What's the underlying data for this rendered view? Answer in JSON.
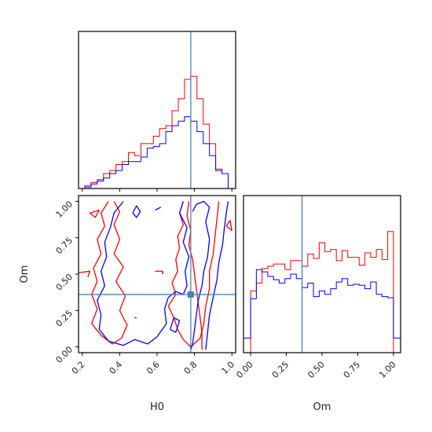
{
  "chart_data": {
    "type": "corner",
    "parameters": [
      "H0",
      "Om"
    ],
    "truths": {
      "H0": 0.78,
      "Om": 0.36
    },
    "truth_color": "#4682b4",
    "series": [
      {
        "color": "#ff0000"
      },
      {
        "color": "#0000ff"
      }
    ],
    "panels": [
      {
        "id": "hist-H0",
        "type": "histogram",
        "x_param": "H0",
        "xlim": [
          0.18,
          1.02
        ],
        "ylim": [
          0,
          1.05
        ],
        "x_ticks": [
          0.2,
          0.4,
          0.6,
          0.8,
          1.0
        ],
        "bin_edges": [
          0.18,
          0.2133,
          0.2467,
          0.28,
          0.3133,
          0.3467,
          0.38,
          0.4133,
          0.4467,
          0.48,
          0.5133,
          0.5467,
          0.58,
          0.6133,
          0.6467,
          0.68,
          0.7133,
          0.7467,
          0.78,
          0.8133,
          0.8467,
          0.88,
          0.9133,
          0.9467,
          0.98,
          1.02
        ],
        "series_values": [
          [
            0.0,
            0.02,
            0.04,
            0.06,
            0.1,
            0.12,
            0.16,
            0.18,
            0.24,
            0.22,
            0.3,
            0.3,
            0.35,
            0.4,
            0.42,
            0.52,
            0.6,
            0.73,
            0.75,
            0.6,
            0.43,
            0.3,
            0.13,
            0.1,
            0.0
          ],
          [
            0.0,
            0.01,
            0.03,
            0.05,
            0.07,
            0.1,
            0.12,
            0.16,
            0.18,
            0.18,
            0.21,
            0.27,
            0.28,
            0.3,
            0.38,
            0.42,
            0.45,
            0.48,
            0.45,
            0.38,
            0.3,
            0.22,
            0.12,
            0.1,
            0.0
          ]
        ]
      },
      {
        "id": "hist-Om",
        "type": "histogram",
        "x_param": "Om",
        "xlim": [
          -0.05,
          1.05
        ],
        "ylim": [
          0,
          1.4
        ],
        "x_ticks": [
          0.0,
          0.25,
          0.5,
          0.75,
          1.0
        ],
        "x_tick_labels": [
          "0.00",
          "0.25",
          "0.50",
          "0.75",
          "1.00"
        ],
        "bin_edges": [
          -0.05,
          0.0,
          0.04,
          0.08,
          0.12,
          0.16,
          0.2,
          0.24,
          0.28,
          0.32,
          0.36,
          0.4,
          0.44,
          0.48,
          0.52,
          0.56,
          0.6,
          0.64,
          0.68,
          0.72,
          0.76,
          0.8,
          0.84,
          0.88,
          0.92,
          0.96,
          1.0,
          1.05
        ],
        "series_values": [
          [
            0.0,
            0.55,
            0.62,
            0.75,
            0.77,
            0.79,
            0.79,
            0.74,
            0.82,
            0.82,
            0.77,
            0.88,
            0.84,
            0.98,
            0.9,
            0.92,
            0.82,
            0.91,
            0.85,
            0.85,
            0.78,
            0.89,
            0.85,
            0.92,
            0.83,
            1.08,
            0.0
          ],
          [
            0.13,
            0.48,
            0.74,
            0.72,
            0.68,
            0.65,
            0.62,
            0.66,
            0.7,
            0.66,
            0.58,
            0.62,
            0.5,
            0.55,
            0.52,
            0.57,
            0.63,
            0.66,
            0.6,
            0.61,
            0.6,
            0.57,
            0.63,
            0.52,
            0.5,
            0.49,
            0.13
          ]
        ]
      },
      {
        "id": "contour-H0-Om",
        "type": "contour",
        "x_param": "H0",
        "y_param": "Om",
        "xlim": [
          0.18,
          1.02
        ],
        "ylim": [
          -0.04,
          1.04
        ],
        "x_ticks": [
          0.2,
          0.4,
          0.6,
          0.8,
          1.0
        ],
        "x_tick_labels": [
          "0.2",
          "0.4",
          "0.6",
          "0.8",
          "1.0"
        ],
        "y_ticks": [
          0.0,
          0.25,
          0.5,
          0.75,
          1.0
        ],
        "y_tick_labels": [
          "0.00",
          "0.25",
          "0.50",
          "0.75",
          "1.00"
        ],
        "xlabel": "H0",
        "ylabel": "Om",
        "contours": [
          {
            "series": 0,
            "points": [
              [
                0.34,
                1.0
              ],
              [
                0.3,
                0.92
              ],
              [
                0.32,
                0.83
              ],
              [
                0.28,
                0.74
              ],
              [
                0.3,
                0.64
              ],
              [
                0.26,
                0.54
              ],
              [
                0.28,
                0.45
              ],
              [
                0.25,
                0.36
              ],
              [
                0.28,
                0.26
              ],
              [
                0.25,
                0.16
              ],
              [
                0.3,
                0.08
              ],
              [
                0.36,
                0.02
              ],
              [
                0.41,
                0.06
              ],
              [
                0.44,
                0.15
              ],
              [
                0.4,
                0.25
              ],
              [
                0.43,
                0.35
              ],
              [
                0.38,
                0.45
              ],
              [
                0.42,
                0.55
              ],
              [
                0.37,
                0.64
              ],
              [
                0.4,
                0.74
              ],
              [
                0.37,
                0.84
              ],
              [
                0.4,
                0.93
              ],
              [
                0.37,
                1.0
              ]
            ]
          },
          {
            "series": 0,
            "points": [
              [
                0.74,
                1.0
              ],
              [
                0.72,
                0.92
              ],
              [
                0.74,
                0.84
              ],
              [
                0.71,
                0.76
              ],
              [
                0.72,
                0.68
              ],
              [
                0.7,
                0.6
              ],
              [
                0.71,
                0.52
              ],
              [
                0.68,
                0.44
              ],
              [
                0.7,
                0.36
              ],
              [
                0.66,
                0.28
              ],
              [
                0.69,
                0.2
              ],
              [
                0.71,
                0.12
              ],
              [
                0.74,
                0.05
              ],
              [
                0.78,
                0.0
              ],
              [
                0.83,
                0.06
              ],
              [
                0.85,
                0.16
              ],
              [
                0.86,
                0.28
              ],
              [
                0.88,
                0.4
              ],
              [
                0.88,
                0.52
              ],
              [
                0.9,
                0.64
              ],
              [
                0.91,
                0.76
              ],
              [
                0.92,
                0.88
              ],
              [
                0.93,
                1.0
              ]
            ]
          },
          {
            "series": 0,
            "points": [
              [
                0.77,
                1.0
              ],
              [
                0.76,
                0.9
              ],
              [
                0.78,
                0.8
              ],
              [
                0.77,
                0.7
              ],
              [
                0.79,
                0.6
              ],
              [
                0.8,
                0.5
              ],
              [
                0.81,
                0.4
              ],
              [
                0.82,
                0.3
              ],
              [
                0.83,
                0.2
              ],
              [
                0.84,
                0.1
              ],
              [
                0.84,
                -0.02
              ]
            ]
          },
          {
            "series": 0,
            "points": [
              [
                0.18,
                0.51
              ],
              [
                0.24,
                0.52
              ],
              [
                0.23,
                0.48
              ]
            ]
          },
          {
            "series": 0,
            "points": [
              [
                0.24,
                0.92
              ],
              [
                0.29,
                0.94
              ],
              [
                0.27,
                0.89
              ],
              [
                0.24,
                0.92
              ]
            ]
          },
          {
            "series": 0,
            "points": [
              [
                0.59,
                0.52
              ],
              [
                0.63,
                0.52
              ]
            ]
          },
          {
            "series": 0,
            "points": [
              [
                0.97,
                0.83
              ],
              [
                0.99,
                0.87
              ],
              [
                1.0,
                0.8
              ],
              [
                0.97,
                0.83
              ]
            ]
          },
          {
            "series": 1,
            "points": [
              [
                0.42,
                1.0
              ],
              [
                0.37,
                0.92
              ],
              [
                0.35,
                0.82
              ],
              [
                0.32,
                0.72
              ],
              [
                0.33,
                0.62
              ],
              [
                0.3,
                0.52
              ],
              [
                0.32,
                0.42
              ],
              [
                0.28,
                0.32
              ],
              [
                0.3,
                0.22
              ],
              [
                0.29,
                0.12
              ],
              [
                0.34,
                0.04
              ],
              [
                0.42,
                0.01
              ],
              [
                0.48,
                0.05
              ],
              [
                0.55,
                0.02
              ],
              [
                0.6,
                0.07
              ],
              [
                0.65,
                0.16
              ],
              [
                0.64,
                0.26
              ],
              [
                0.66,
                0.34
              ],
              [
                0.7,
                0.38
              ],
              [
                0.74,
                0.36
              ],
              [
                0.76,
                0.42
              ],
              [
                0.75,
                0.52
              ],
              [
                0.77,
                0.62
              ],
              [
                0.74,
                0.72
              ],
              [
                0.76,
                0.82
              ],
              [
                0.72,
                0.92
              ],
              [
                0.74,
                1.0
              ]
            ]
          },
          {
            "series": 1,
            "points": [
              [
                0.79,
                0.93
              ],
              [
                0.81,
                0.98
              ],
              [
                0.85,
                1.0
              ],
              [
                0.88,
                0.96
              ],
              [
                0.86,
                0.86
              ],
              [
                0.88,
                0.74
              ],
              [
                0.87,
                0.62
              ],
              [
                0.85,
                0.52
              ],
              [
                0.84,
                0.42
              ],
              [
                0.82,
                0.32
              ],
              [
                0.81,
                0.22
              ],
              [
                0.8,
                0.12
              ],
              [
                0.79,
                0.02
              ],
              [
                0.78,
                -0.02
              ]
            ]
          },
          {
            "series": 1,
            "points": [
              [
                0.86,
                -0.02
              ],
              [
                0.87,
                0.1
              ],
              [
                0.88,
                0.22
              ],
              [
                0.9,
                0.34
              ],
              [
                0.92,
                0.46
              ],
              [
                0.93,
                0.58
              ],
              [
                0.95,
                0.7
              ],
              [
                0.96,
                0.82
              ],
              [
                0.97,
                0.92
              ],
              [
                0.98,
                1.0
              ]
            ]
          },
          {
            "series": 1,
            "points": [
              [
                0.67,
                0.12
              ],
              [
                0.69,
                0.2
              ],
              [
                0.72,
                0.18
              ],
              [
                0.7,
                0.1
              ],
              [
                0.67,
                0.12
              ]
            ]
          },
          {
            "series": 1,
            "points": [
              [
                0.47,
                0.92
              ],
              [
                0.49,
                0.97
              ],
              [
                0.51,
                0.93
              ],
              [
                0.49,
                0.89
              ],
              [
                0.47,
                0.92
              ]
            ]
          },
          {
            "series": 1,
            "points": [
              [
                0.63,
                0.5
              ],
              [
                0.63,
                0.52
              ]
            ]
          },
          {
            "series": 1,
            "points": [
              [
                0.48,
                0.2
              ],
              [
                0.49,
                0.2
              ]
            ]
          },
          {
            "series": 1,
            "points": [
              [
                0.59,
                0.94
              ],
              [
                0.62,
                0.96
              ]
            ]
          }
        ]
      }
    ]
  }
}
